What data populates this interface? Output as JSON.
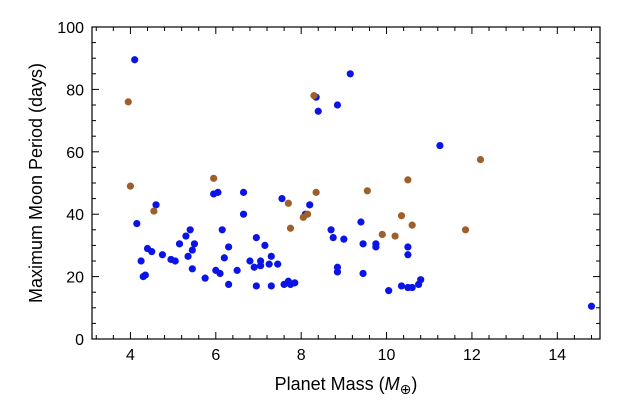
{
  "chart_data": {
    "type": "scatter",
    "title": "",
    "xlabel": "Planet Mass (",
    "xlabel_symbol": "M",
    "xlabel_sub": "⊕",
    "xlabel_close": ")",
    "ylabel": "Maximum Moon Period (days)",
    "xlim": [
      3.1,
      15.0
    ],
    "ylim": [
      0,
      100
    ],
    "xticks": [
      4,
      6,
      8,
      10,
      12,
      14
    ],
    "yticks": [
      0,
      20,
      40,
      60,
      80,
      100
    ],
    "grid": false,
    "series": [
      {
        "name": "blue",
        "color": "#0a14e6",
        "points": [
          [
            4.1,
            89.5
          ],
          [
            4.15,
            37
          ],
          [
            4.25,
            25
          ],
          [
            4.3,
            20
          ],
          [
            4.35,
            20.5
          ],
          [
            4.4,
            29
          ],
          [
            4.5,
            28
          ],
          [
            4.6,
            43
          ],
          [
            4.75,
            27
          ],
          [
            4.95,
            25.5
          ],
          [
            5.05,
            25
          ],
          [
            5.15,
            30.5
          ],
          [
            5.3,
            33
          ],
          [
            5.35,
            26.5
          ],
          [
            5.4,
            35
          ],
          [
            5.45,
            28.5
          ],
          [
            5.5,
            30.5
          ],
          [
            5.45,
            22.5
          ],
          [
            5.75,
            19.5
          ],
          [
            5.95,
            46.5
          ],
          [
            6.0,
            22
          ],
          [
            6.05,
            47
          ],
          [
            6.1,
            21
          ],
          [
            6.15,
            35
          ],
          [
            6.2,
            26
          ],
          [
            6.3,
            29.5
          ],
          [
            6.3,
            17.5
          ],
          [
            6.5,
            22
          ],
          [
            6.65,
            47
          ],
          [
            6.65,
            40
          ],
          [
            6.8,
            25
          ],
          [
            6.9,
            23
          ],
          [
            6.95,
            32.5
          ],
          [
            6.95,
            17
          ],
          [
            7.05,
            25
          ],
          [
            7.05,
            23.5
          ],
          [
            7.15,
            30
          ],
          [
            7.25,
            24
          ],
          [
            7.3,
            17
          ],
          [
            7.3,
            26.5
          ],
          [
            7.45,
            24
          ],
          [
            7.55,
            45
          ],
          [
            7.6,
            17.5
          ],
          [
            7.7,
            18.5
          ],
          [
            7.75,
            17.5
          ],
          [
            7.85,
            18
          ],
          [
            8.1,
            40
          ],
          [
            8.2,
            43
          ],
          [
            8.35,
            77.5
          ],
          [
            8.4,
            73
          ],
          [
            8.7,
            35
          ],
          [
            8.75,
            32.5
          ],
          [
            8.85,
            75
          ],
          [
            8.85,
            23
          ],
          [
            8.85,
            21.5
          ],
          [
            9.0,
            32
          ],
          [
            9.15,
            85
          ],
          [
            9.4,
            37.5
          ],
          [
            9.45,
            30.5
          ],
          [
            9.45,
            21
          ],
          [
            9.75,
            30.5
          ],
          [
            9.75,
            29.5
          ],
          [
            10.05,
            15.5
          ],
          [
            10.35,
            17
          ],
          [
            10.5,
            29.5
          ],
          [
            10.5,
            27
          ],
          [
            10.5,
            16.5
          ],
          [
            10.6,
            16.5
          ],
          [
            10.75,
            17.5
          ],
          [
            10.8,
            19
          ],
          [
            11.25,
            62
          ],
          [
            14.8,
            10.5
          ]
        ]
      },
      {
        "name": "brown",
        "color": "#9e5f2b",
        "points": [
          [
            3.95,
            76
          ],
          [
            4.0,
            49
          ],
          [
            4.55,
            41
          ],
          [
            5.95,
            51.5
          ],
          [
            7.7,
            43.5
          ],
          [
            7.75,
            35.5
          ],
          [
            8.05,
            39
          ],
          [
            8.15,
            40
          ],
          [
            8.3,
            78
          ],
          [
            8.35,
            47
          ],
          [
            9.55,
            47.5
          ],
          [
            9.9,
            33.5
          ],
          [
            10.2,
            33
          ],
          [
            10.35,
            39.5
          ],
          [
            10.5,
            51
          ],
          [
            10.6,
            36.5
          ],
          [
            11.85,
            35
          ],
          [
            12.2,
            57.5
          ]
        ]
      }
    ]
  }
}
